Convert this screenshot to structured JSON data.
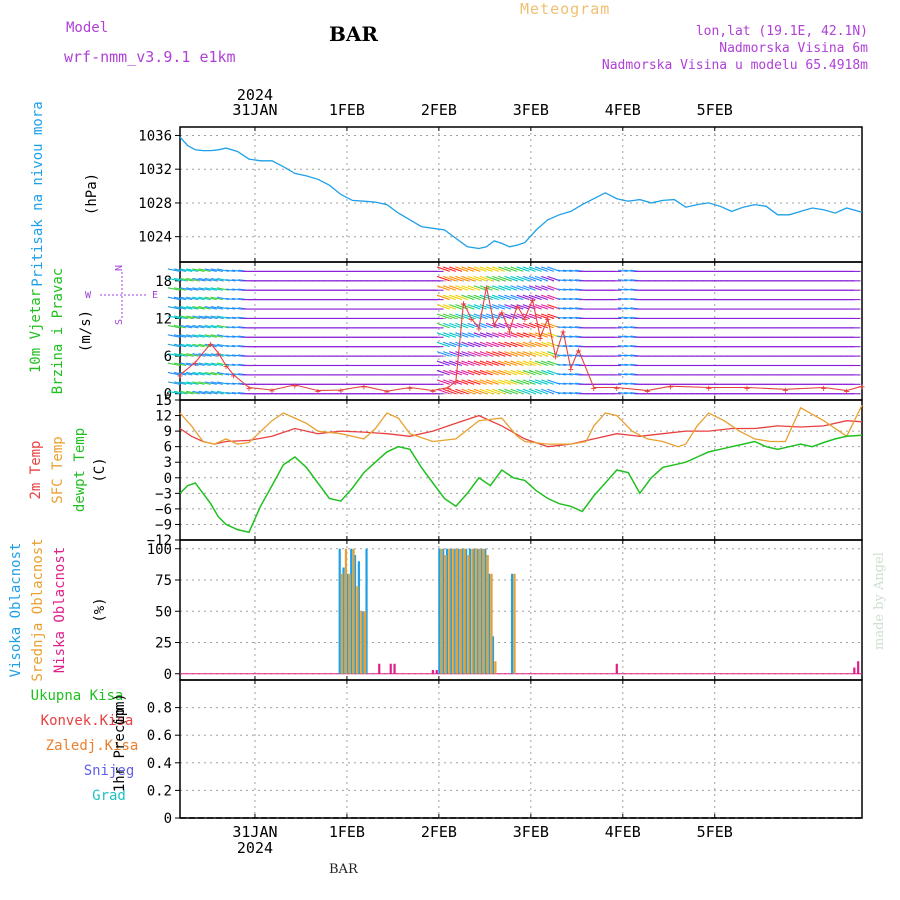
{
  "header": {
    "app_title": "Meteogram",
    "station": "BAR",
    "model_label": "Model",
    "model_name": "wrf-nmm_v3.9.1  e1km",
    "lonlat": "lon,lat (19.1E, 42.1N)",
    "elevation": "Nadmorska Visina 6m",
    "model_elevation": "Nadmorska Visina u modelu 65.4918m",
    "bottom_label": "BAR",
    "credit": "made by Angel"
  },
  "colors": {
    "pressure": "#1ea0e8",
    "temp_2m": "#e84040",
    "temp_sfc": "#e8a030",
    "dewpoint": "#20c020",
    "cloud_high": "#1ea0e8",
    "cloud_mid": "#e8a030",
    "cloud_low": "#e0208a",
    "wind_speed": "#e84040",
    "wind_barb_default": "#8a20d8"
  },
  "chart_data": [
    {
      "type": "line",
      "panel": "pressure",
      "xlabel_top": [
        "2024",
        "31JAN"
      ],
      "x_ticks": [
        "31JAN",
        "1FEB",
        "2FEB",
        "3FEB",
        "4FEB",
        "5FEB"
      ],
      "ylabel": "Pritisak na nivou mora",
      "yunit": "(hPa)",
      "ylim": [
        1021,
        1037
      ],
      "y_ticks": [
        1024,
        1028,
        1032,
        1036
      ],
      "grid": true,
      "series": [
        {
          "color_key": "pressure",
          "x_hours": [
            -18,
            -16,
            -14,
            -12,
            -10,
            -8,
            -6,
            -3,
            0,
            3,
            6,
            9,
            12,
            15,
            18,
            21,
            24,
            27,
            30,
            33,
            36,
            39,
            42,
            45,
            48,
            51,
            54,
            57,
            60,
            62,
            64,
            66,
            68,
            70,
            72,
            75,
            78,
            81,
            84,
            87,
            90,
            93,
            96,
            99,
            102,
            105,
            108,
            111,
            114,
            117,
            120,
            123,
            126,
            129,
            132,
            135,
            138,
            141,
            144,
            147,
            150,
            153,
            156,
            160
          ],
          "values": [
            1035.8,
            1034.8,
            1034.3,
            1034.2,
            1034.2,
            1034.3,
            1034.5,
            1034.1,
            1033.2,
            1033.0,
            1033.0,
            1032.3,
            1031.5,
            1031.2,
            1030.8,
            1030.1,
            1029.0,
            1028.3,
            1028.2,
            1028.1,
            1027.8,
            1026.8,
            1026.0,
            1025.2,
            1025.0,
            1024.8,
            1023.8,
            1022.8,
            1022.6,
            1022.8,
            1023.5,
            1023.2,
            1022.8,
            1023.0,
            1023.3,
            1024.8,
            1026.0,
            1026.6,
            1027.0,
            1027.8,
            1028.5,
            1029.2,
            1028.5,
            1028.2,
            1028.4,
            1028.0,
            1028.3,
            1028.4,
            1027.5,
            1027.8,
            1028.0,
            1027.6,
            1027.0,
            1027.5,
            1027.8,
            1027.6,
            1026.6,
            1026.6,
            1027.0,
            1027.4,
            1027.2,
            1026.8,
            1027.4,
            1026.9
          ]
        }
      ]
    },
    {
      "type": "line",
      "panel": "wind",
      "ylabel": "10m Vjetar Brzina i Pravac",
      "yunit": "(m/s)",
      "direction_legend": {
        "n": "N",
        "s": "S",
        "w": "W",
        "e": "E"
      },
      "ylim": [
        -1,
        21
      ],
      "y_ticks": [
        0,
        6,
        12,
        18
      ],
      "grid": true,
      "series": [
        {
          "name": "wind speed",
          "color_key": "wind_speed",
          "x_hours": [
            -18,
            -14,
            -10,
            -8,
            -6,
            -4,
            0,
            6,
            12,
            18,
            24,
            30,
            36,
            42,
            48,
            52,
            54,
            56,
            58,
            60,
            62,
            64,
            66,
            68,
            70,
            72,
            74,
            76,
            78,
            80,
            82,
            84,
            86,
            90,
            96,
            104,
            110,
            120,
            130,
            140,
            150,
            156,
            160
          ],
          "values": [
            3.0,
            5.0,
            8.0,
            6.5,
            4.5,
            3.0,
            1.0,
            0.6,
            1.4,
            0.5,
            0.6,
            1.2,
            0.4,
            1.0,
            0.5,
            1.0,
            2.0,
            14.5,
            12.0,
            10.5,
            17.0,
            11.0,
            13.0,
            10.0,
            14.0,
            12.0,
            15.0,
            9.0,
            12.0,
            6.0,
            10.0,
            4.0,
            7.0,
            1.0,
            1.0,
            0.5,
            1.2,
            1.0,
            1.0,
            0.7,
            1.0,
            0.5,
            1.2
          ]
        }
      ]
    },
    {
      "type": "line",
      "panel": "temperature",
      "ylabels": [
        "2m Temp",
        "SFC Temp",
        "dewpt Temp"
      ],
      "yunit": "(C)",
      "ylim": [
        -12,
        15
      ],
      "y_ticks": [
        -12,
        -9,
        -6,
        -3,
        0,
        3,
        6,
        9,
        12,
        15
      ],
      "grid": true,
      "series": [
        {
          "name": "2m Temp",
          "color_key": "temp_2m",
          "x_hours": [
            -18,
            -15,
            -12,
            -9,
            -6,
            0,
            6,
            12,
            18,
            24,
            30,
            36,
            42,
            48,
            54,
            60,
            66,
            72,
            78,
            84,
            90,
            96,
            102,
            108,
            114,
            120,
            126,
            132,
            138,
            144,
            150,
            156,
            160
          ],
          "values": [
            9.5,
            8.0,
            7.0,
            6.5,
            7.0,
            7.2,
            8.0,
            9.5,
            8.5,
            9.0,
            8.8,
            8.5,
            8.0,
            9.0,
            10.5,
            12.0,
            10.0,
            7.5,
            6.0,
            6.5,
            7.5,
            8.5,
            8.0,
            8.5,
            9.0,
            9.0,
            9.5,
            9.5,
            10.0,
            9.8,
            10.0,
            11.0,
            10.8
          ]
        },
        {
          "name": "SFC Temp",
          "color_key": "temp_sfc",
          "x_hours": [
            -18,
            -15,
            -12,
            -9,
            -6,
            -3,
            0,
            6,
            9,
            12,
            15,
            18,
            24,
            30,
            33,
            36,
            39,
            42,
            48,
            54,
            60,
            66,
            70,
            72,
            78,
            84,
            88,
            90,
            93,
            96,
            100,
            104,
            108,
            112,
            114,
            117,
            120,
            124,
            128,
            132,
            136,
            140,
            144,
            150,
            156,
            160
          ],
          "values": [
            12.5,
            10.0,
            7.0,
            6.5,
            7.5,
            6.5,
            6.8,
            11.0,
            12.5,
            11.5,
            10.5,
            9.0,
            8.5,
            7.5,
            9.5,
            12.5,
            11.5,
            8.5,
            7.0,
            7.5,
            11.0,
            11.5,
            8.0,
            7.0,
            6.5,
            6.5,
            7.0,
            10.0,
            12.5,
            12.0,
            9.0,
            7.5,
            7.0,
            6.0,
            6.5,
            10.0,
            12.5,
            11.0,
            9.0,
            7.5,
            7.0,
            7.0,
            13.5,
            11.0,
            8.0,
            14.0
          ]
        },
        {
          "name": "dewpt Temp",
          "color_key": "dewpoint",
          "x_hours": [
            -18,
            -16,
            -14,
            -12,
            -10,
            -8,
            -6,
            -3,
            0,
            3,
            6,
            9,
            12,
            15,
            18,
            21,
            24,
            27,
            30,
            33,
            36,
            39,
            42,
            45,
            48,
            51,
            54,
            57,
            60,
            63,
            66,
            69,
            72,
            75,
            78,
            81,
            84,
            87,
            90,
            93,
            96,
            99,
            102,
            105,
            108,
            111,
            114,
            117,
            120,
            123,
            126,
            129,
            132,
            135,
            138,
            141,
            144,
            147,
            150,
            153,
            156,
            160
          ],
          "values": [
            -3.0,
            -1.5,
            -1.0,
            -3.0,
            -5.0,
            -7.5,
            -9.0,
            -10.0,
            -10.5,
            -5.5,
            -1.5,
            2.5,
            4.0,
            2.0,
            -1.0,
            -4.0,
            -4.5,
            -2.0,
            1.0,
            3.0,
            5.0,
            6.0,
            5.5,
            2.0,
            -1.0,
            -4.0,
            -5.5,
            -3.0,
            0.0,
            -1.5,
            1.5,
            0.0,
            -0.5,
            -2.5,
            -4.0,
            -5.0,
            -5.5,
            -6.5,
            -3.5,
            -1.0,
            1.5,
            1.0,
            -3.0,
            0.0,
            2.0,
            2.5,
            3.0,
            4.0,
            5.0,
            5.5,
            6.0,
            6.5,
            7.0,
            6.0,
            5.5,
            6.0,
            6.5,
            6.0,
            6.8,
            7.5,
            8.0,
            8.2
          ]
        }
      ]
    },
    {
      "type": "bar",
      "panel": "clouds",
      "ylabels": [
        "Visoka Oblacnost",
        "Srednja Oblacnost",
        "Niska Oblacnost"
      ],
      "yunit": "(%)",
      "ylim": [
        -5,
        107
      ],
      "y_ticks": [
        0,
        25,
        50,
        75,
        100
      ],
      "grid": true,
      "series": [
        {
          "name": "Visoka Oblacnost",
          "color_key": "cloud_high",
          "x_hours": [
            24,
            25,
            26,
            27,
            28,
            29,
            30,
            31,
            50,
            51,
            52,
            53,
            54,
            55,
            56,
            57,
            58,
            59,
            60,
            61,
            62,
            63,
            64,
            69
          ],
          "values": [
            100,
            85,
            80,
            100,
            95,
            90,
            50,
            100,
            100,
            100,
            100,
            100,
            100,
            100,
            100,
            100,
            100,
            100,
            100,
            100,
            100,
            80,
            30,
            80
          ]
        },
        {
          "name": "Srednja Oblacnost",
          "color_key": "cloud_mid",
          "x_hours": [
            24,
            25,
            26,
            27,
            28,
            29,
            30,
            31,
            50,
            51,
            52,
            53,
            54,
            55,
            56,
            57,
            58,
            59,
            60,
            61,
            62,
            63,
            64,
            69
          ],
          "values": [
            80,
            100,
            80,
            100,
            70,
            50,
            50,
            0,
            100,
            95,
            100,
            100,
            100,
            100,
            100,
            95,
            100,
            100,
            100,
            100,
            95,
            80,
            10,
            80
          ]
        },
        {
          "name": "Niska Oblacnost",
          "color_key": "cloud_low",
          "x_hours": [
            34,
            37,
            38,
            48,
            49,
            96,
            158,
            159
          ],
          "values": [
            8,
            8,
            8,
            3,
            3,
            8,
            5,
            10
          ]
        }
      ]
    },
    {
      "type": "line",
      "panel": "precipitation",
      "legend": [
        "Ukupna Kisa",
        "Konvek.Kisa",
        "Zaledj.Kisa",
        "Snijeg",
        "Grad"
      ],
      "legend_colors": [
        "#20c020",
        "#e84040",
        "#e88030",
        "#6060e8",
        "#20c0c0"
      ],
      "ylabel": "1hr Precip",
      "yunit": "(mm)",
      "ylim": [
        0,
        1.0
      ],
      "y_ticks": [
        0,
        0.2,
        0.4,
        0.6,
        0.8
      ],
      "x_ticks": [
        "31JAN",
        "1FEB",
        "2FEB",
        "3FEB",
        "4FEB",
        "5FEB"
      ],
      "xlabel_bottom": "2024",
      "grid": true,
      "series": []
    }
  ]
}
